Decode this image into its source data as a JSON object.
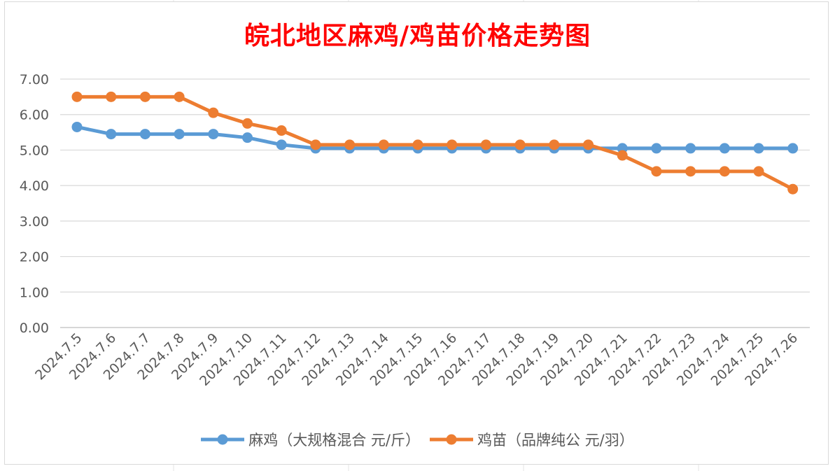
{
  "chart_data": {
    "type": "line",
    "title": "皖北地区麻鸡/鸡苗价格走势图",
    "xlabel": "",
    "ylabel": "",
    "ylim": [
      0,
      7
    ],
    "yticks": [
      "0.00",
      "1.00",
      "2.00",
      "3.00",
      "4.00",
      "5.00",
      "6.00",
      "7.00"
    ],
    "grid": true,
    "legend_position": "bottom",
    "categories": [
      "2024.7.5",
      "2024.7.6",
      "2024.7.7",
      "2024.7.8",
      "2024.7.9",
      "2024.7.10",
      "2024.7.11",
      "2024.7.12",
      "2024.7.13",
      "2024.7.14",
      "2024.7.15",
      "2024.7.16",
      "2024.7.17",
      "2024.7.18",
      "2024.7.19",
      "2024.7.20",
      "2024.7.21",
      "2024.7.22",
      "2024.7.23",
      "2024.7.24",
      "2024.7.25",
      "2024.7.26"
    ],
    "series": [
      {
        "name": "麻鸡（大规格混合 元/斤）",
        "color": "#5b9bd5",
        "values": [
          5.65,
          5.45,
          5.45,
          5.45,
          5.45,
          5.35,
          5.15,
          5.05,
          5.05,
          5.05,
          5.05,
          5.05,
          5.05,
          5.05,
          5.05,
          5.05,
          5.05,
          5.05,
          5.05,
          5.05,
          5.05,
          5.05
        ]
      },
      {
        "name": "鸡苗（品牌纯公 元/羽）",
        "color": "#ed7d31",
        "values": [
          6.5,
          6.5,
          6.5,
          6.5,
          6.05,
          5.75,
          5.55,
          5.15,
          5.15,
          5.15,
          5.15,
          5.15,
          5.15,
          5.15,
          5.15,
          5.15,
          4.85,
          4.4,
          4.4,
          4.4,
          4.4,
          3.9
        ]
      }
    ]
  }
}
